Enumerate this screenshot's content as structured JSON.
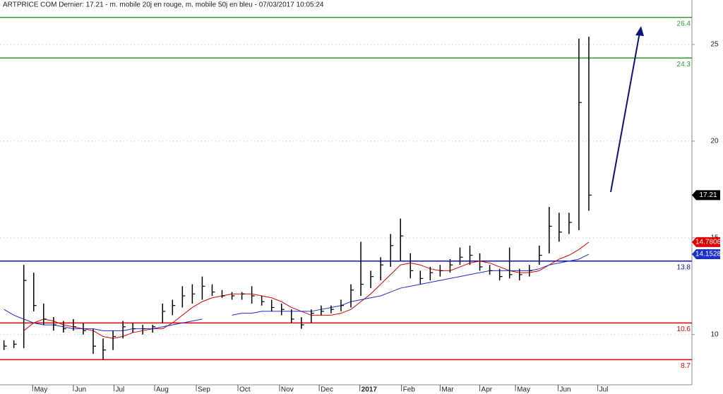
{
  "chart_data": {
    "type": "ohlc",
    "title": "ARTPRICE COM Dernier: 17.21 - m. mobile 20j en rouge, m. mobile 50j en bleu - 07/03/2017 10:05:24",
    "xlim": [
      -0.4,
      69.4
    ],
    "xticks": [
      {
        "value": 2.9,
        "label": "May"
      },
      {
        "value": 7.0,
        "label": "Jun"
      },
      {
        "value": 11.1,
        "label": "Jul"
      },
      {
        "value": 15.2,
        "label": "Aug"
      },
      {
        "value": 19.4,
        "label": "Sep"
      },
      {
        "value": 23.6,
        "label": "Oct"
      },
      {
        "value": 27.8,
        "label": "Nov"
      },
      {
        "value": 31.8,
        "label": "Dec"
      },
      {
        "value": 35.9,
        "label": "2017"
      },
      {
        "value": 40.1,
        "label": "Feb"
      },
      {
        "value": 44.0,
        "label": "Mar"
      },
      {
        "value": 48.0,
        "label": "Apr"
      },
      {
        "value": 51.6,
        "label": "May"
      },
      {
        "value": 55.9,
        "label": "Jun"
      },
      {
        "value": 59.9,
        "label": "Jul"
      }
    ],
    "ylim": [
      7.4,
      27.3
    ],
    "yticks": [
      10,
      15,
      20,
      25
    ],
    "grid": true,
    "color": "#000000",
    "bars": {
      "low": [
        9.2,
        9.3,
        9.3,
        11.2,
        10.5,
        10.2,
        10.1,
        10.2,
        10.0,
        9.0,
        8.7,
        9.2,
        9.8,
        10.1,
        10.0,
        10.1,
        10.6,
        11.0,
        11.4,
        11.6,
        11.8,
        12.0,
        11.9,
        11.8,
        11.8,
        11.6,
        11.5,
        11.2,
        11.0,
        10.6,
        10.3,
        10.6,
        11.0,
        11.1,
        11.2,
        11.4,
        12.0,
        12.4,
        12.8,
        13.5,
        13.8,
        12.9,
        12.6,
        12.8,
        13.0,
        13.2,
        13.6,
        13.6,
        13.3,
        13.1,
        12.8,
        12.9,
        12.8,
        13.0,
        13.6,
        14.2,
        14.8,
        15.2,
        15.4,
        16.4
      ],
      "high": [
        9.7,
        9.7,
        13.6,
        13.2,
        11.6,
        10.9,
        10.7,
        10.8,
        10.6,
        10.3,
        9.8,
        10.2,
        10.7,
        10.6,
        10.5,
        10.5,
        11.6,
        11.8,
        12.5,
        12.6,
        13.0,
        12.6,
        12.3,
        12.2,
        12.2,
        12.5,
        12.0,
        11.8,
        11.6,
        11.3,
        10.9,
        11.3,
        11.5,
        11.5,
        11.8,
        12.6,
        14.8,
        13.3,
        14.0,
        15.2,
        16.0,
        14.2,
        13.3,
        13.5,
        13.6,
        13.9,
        14.5,
        14.6,
        14.2,
        13.6,
        13.4,
        14.5,
        13.4,
        13.6,
        14.6,
        16.6,
        16.3,
        16.3,
        25.3,
        25.4
      ],
      "close": [
        9.4,
        9.5,
        12.8,
        11.5,
        10.8,
        10.5,
        10.3,
        10.4,
        10.2,
        9.4,
        9.2,
        9.9,
        10.4,
        10.3,
        10.3,
        10.4,
        11.2,
        11.5,
        12.0,
        12.1,
        12.5,
        12.2,
        12.0,
        12.0,
        12.1,
        12.0,
        11.7,
        11.4,
        11.3,
        10.8,
        10.5,
        11.1,
        11.2,
        11.3,
        11.5,
        12.3,
        12.6,
        13.0,
        13.6,
        14.6,
        15.1,
        13.3,
        12.9,
        13.2,
        13.3,
        13.6,
        14.0,
        14.1,
        13.5,
        13.3,
        13.0,
        13.1,
        13.1,
        13.3,
        14.1,
        15.6,
        15.3,
        15.8,
        22.0,
        17.21
      ]
    },
    "moving_averages": [
      {
        "color": "#e00000",
        "values": [
          null,
          null,
          10.2,
          10.6,
          10.8,
          10.7,
          10.5,
          10.4,
          10.3,
          10.2,
          9.9,
          9.8,
          9.9,
          10.1,
          10.2,
          10.3,
          10.3,
          10.6,
          11.0,
          11.4,
          11.7,
          11.9,
          12.0,
          12.1,
          12.1,
          12.1,
          12.0,
          11.9,
          11.7,
          11.4,
          11.2,
          11.0,
          11.0,
          11.0,
          11.1,
          11.3,
          11.7,
          12.1,
          12.6,
          13.1,
          13.6,
          13.7,
          13.6,
          13.4,
          13.3,
          13.3,
          13.5,
          13.7,
          13.8,
          13.7,
          13.5,
          13.3,
          13.2,
          13.2,
          13.3,
          13.6,
          13.9,
          14.1,
          14.4,
          14.7806
        ]
      },
      {
        "color": "#1a2fd0",
        "values": [
          11.3,
          11.0,
          10.8,
          10.6,
          10.5,
          10.5,
          10.4,
          10.3,
          10.3,
          10.3,
          10.2,
          10.2,
          10.2,
          10.3,
          10.3,
          10.3,
          10.4,
          10.5,
          10.6,
          10.7,
          10.8,
          null,
          null,
          11.0,
          11.1,
          11.1,
          11.2,
          11.2,
          11.2,
          11.2,
          11.2,
          11.2,
          11.3,
          11.4,
          11.5,
          11.7,
          11.8,
          11.9,
          12.0,
          12.2,
          12.4,
          12.5,
          12.6,
          12.7,
          12.8,
          12.9,
          13.0,
          13.1,
          13.2,
          13.3,
          13.3,
          13.3,
          13.3,
          13.3,
          13.4,
          13.6,
          13.7,
          13.8,
          13.9,
          14.1528
        ]
      }
    ],
    "levels": [
      {
        "value": 26.4,
        "color": "#2e9a2e"
      },
      {
        "value": 24.3,
        "color": "#2e9a2e"
      },
      {
        "value": 13.8,
        "color": "#1010c0"
      },
      {
        "value": 10.6,
        "color": "#e00000"
      },
      {
        "value": 8.7,
        "color": "#e00000"
      }
    ]
  }
}
